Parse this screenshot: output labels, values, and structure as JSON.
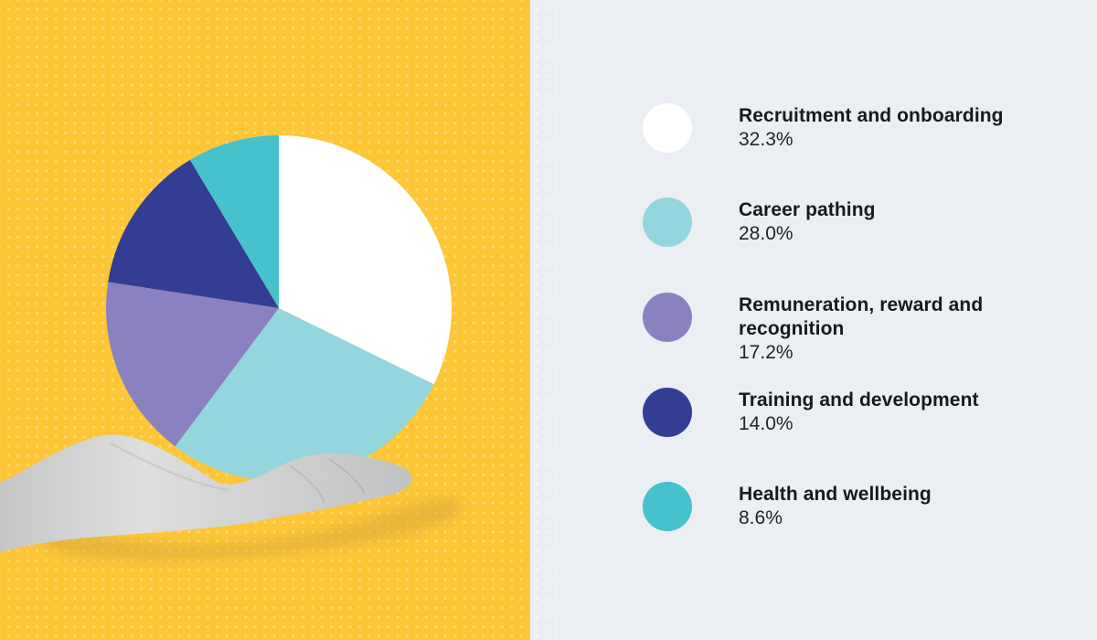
{
  "page": {
    "left_background_color": "#FDC637",
    "right_background_color": "#EBEEF3",
    "dot_pattern_color": "rgba(255,255,255,0.36)",
    "text_color": "#191919"
  },
  "chart_data": {
    "type": "pie",
    "title": "",
    "categories": [
      "Recruitment and onboarding",
      "Career pathing",
      "Remuneration, reward and recognition",
      "Training and development",
      "Health and wellbeing"
    ],
    "values": [
      32.3,
      28.0,
      17.2,
      14.0,
      8.6
    ],
    "value_labels": [
      "32.3%",
      "28.0%",
      "17.2%",
      "14.0%",
      "8.6%"
    ],
    "colors": [
      "#FFFFFF",
      "#93D6DE",
      "#8A82C0",
      "#333D94",
      "#45C2CB"
    ],
    "start_angle_deg": 0,
    "direction": "clockwise",
    "legend_position": "right"
  },
  "illustration": {
    "name": "hand-holding-pie-chart",
    "hand_color_light": "#DEDEDE",
    "hand_color_dark": "#BDBDBD",
    "shadow_color": "#D9A73B"
  }
}
